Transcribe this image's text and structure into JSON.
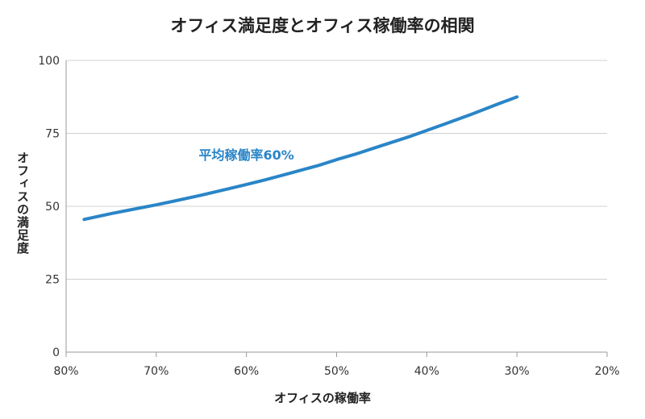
{
  "chart_data": {
    "type": "line",
    "title": "オフィス満足度とオフィス稼働率の相関",
    "xlabel": "オフィスの稼働率",
    "ylabel": "オフィスの満足度",
    "x_ticks": [
      "80%",
      "70%",
      "60%",
      "50%",
      "40%",
      "30%",
      "20%"
    ],
    "x_tick_values": [
      80,
      70,
      60,
      50,
      40,
      30,
      20
    ],
    "y_ticks": [
      "0",
      "25",
      "50",
      "75",
      "100"
    ],
    "y_tick_values": [
      0,
      25,
      50,
      75,
      100
    ],
    "xlim": [
      80,
      20
    ],
    "ylim": [
      0,
      100
    ],
    "grid": "horizontal",
    "series": [
      {
        "color": "#2a85c7",
        "x": [
          78,
          75,
          72,
          70,
          68,
          65,
          62,
          60,
          58,
          55,
          52,
          50,
          48,
          45,
          42,
          40,
          38,
          35,
          32,
          30
        ],
        "y": [
          45.5,
          47.5,
          49.3,
          50.5,
          51.8,
          53.8,
          56.0,
          57.5,
          59.0,
          61.5,
          64.0,
          66.0,
          67.8,
          70.8,
          73.8,
          76.0,
          78.2,
          81.6,
          85.2,
          87.5
        ]
      }
    ],
    "annotations": [
      {
        "text": "平均稼働率60%",
        "x": 60,
        "y": 66,
        "color": "#2a85c7"
      }
    ]
  }
}
